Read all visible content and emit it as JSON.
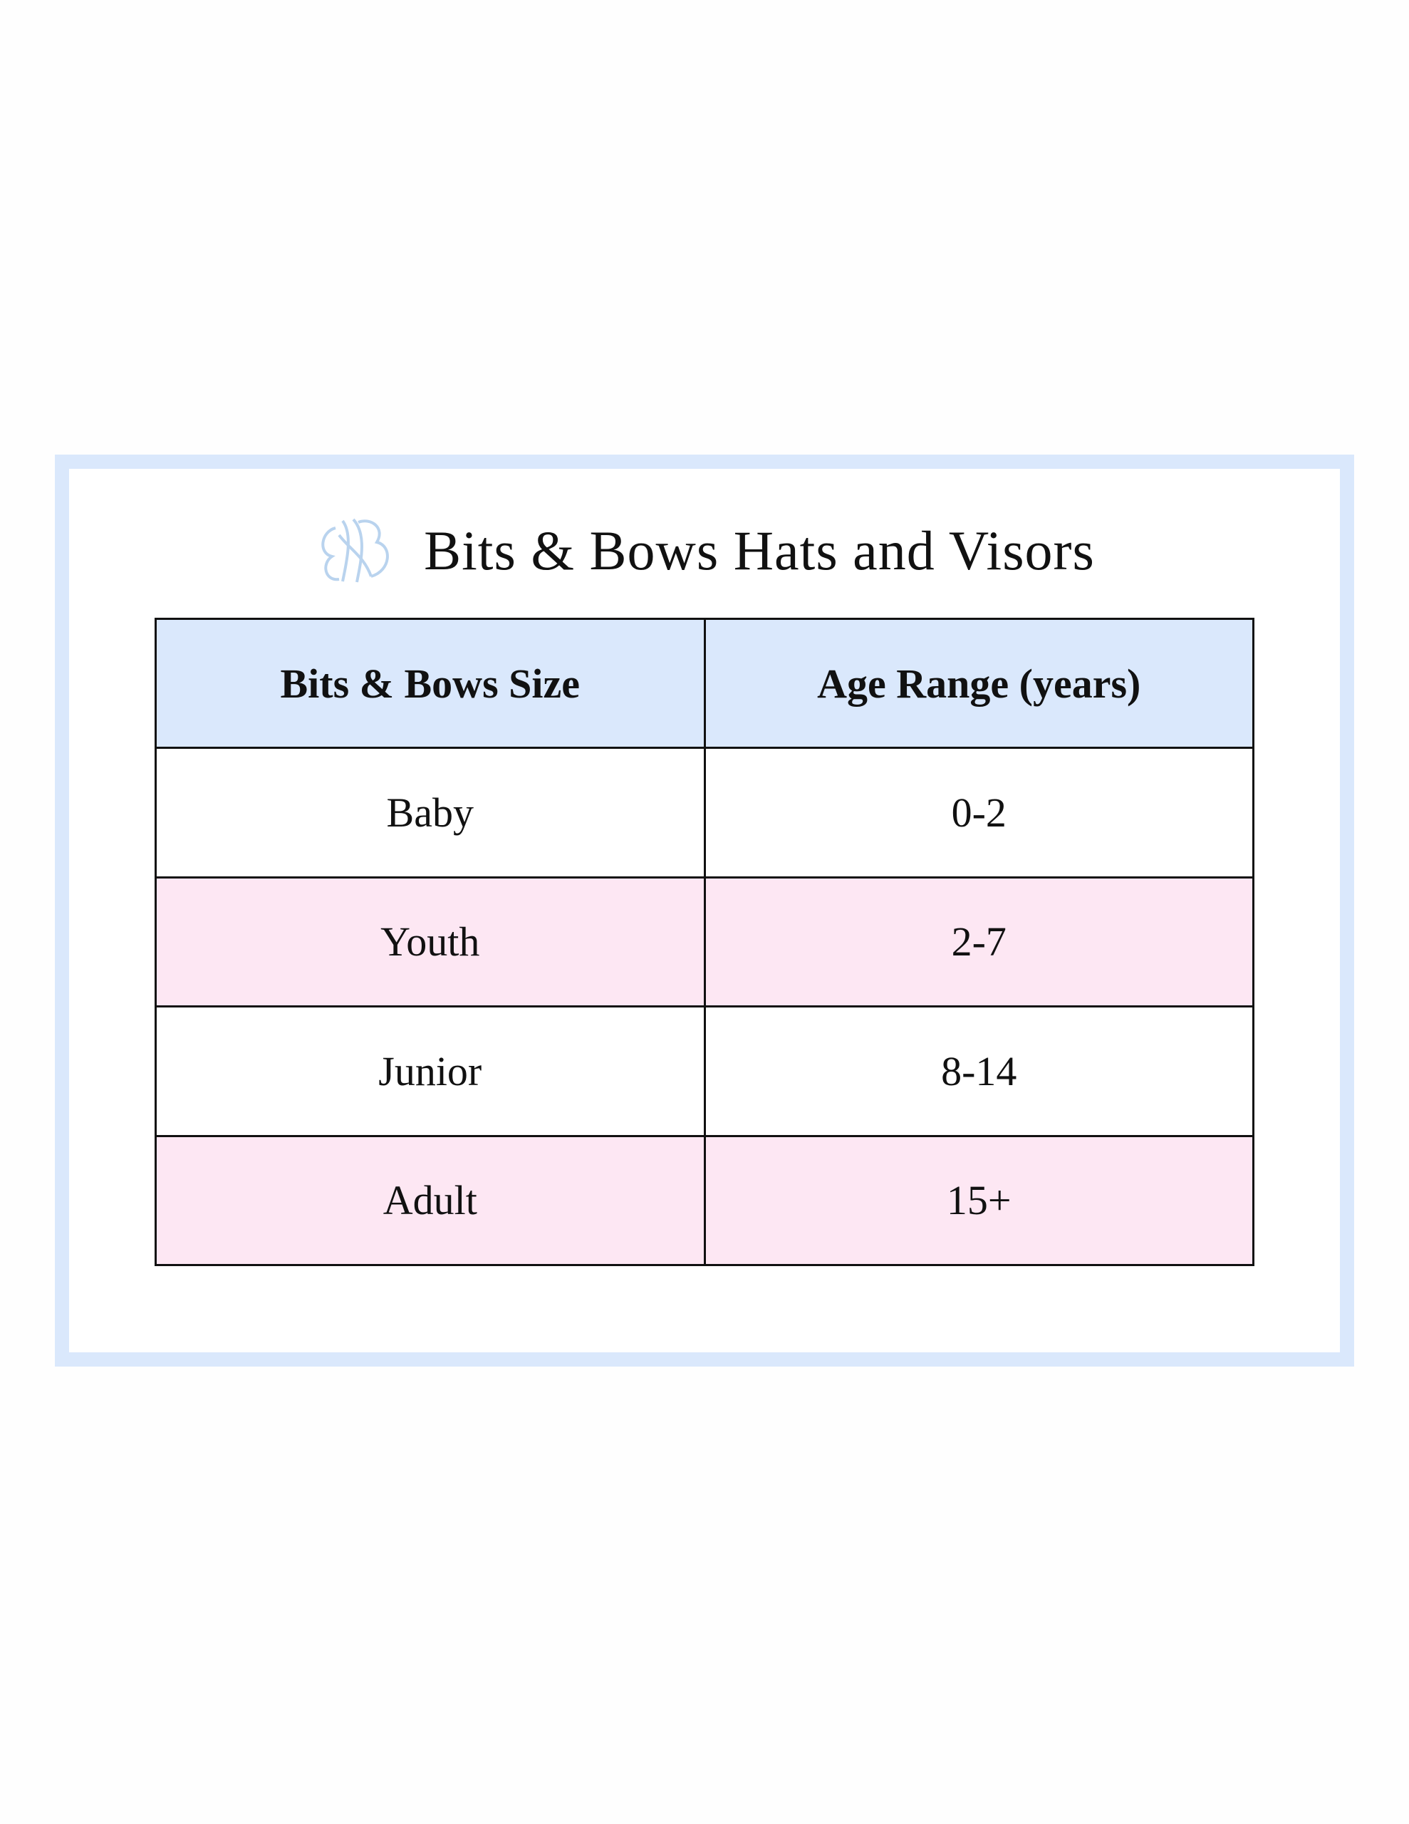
{
  "title": "Bits & Bows Hats and Visors",
  "logo": {
    "icon": "bits-and-bows-monogram-logo",
    "text": "BB",
    "color": "#b9d3ee"
  },
  "colors": {
    "frame": "#dae8fc",
    "header_bg": "#dae8fc",
    "alt_row_bg": "#fde7f3"
  },
  "table": {
    "headers": [
      "Bits & Bows Size",
      "Age Range (years)"
    ],
    "rows": [
      [
        "Baby",
        "0-2"
      ],
      [
        "Youth",
        "2-7"
      ],
      [
        "Junior",
        "8-14"
      ],
      [
        "Adult",
        "15+"
      ]
    ]
  }
}
